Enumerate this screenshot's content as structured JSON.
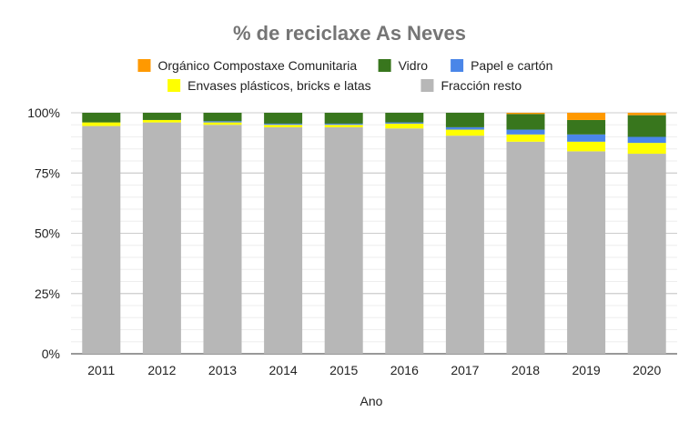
{
  "chart_data": {
    "type": "bar",
    "stacked": true,
    "title": "% de reciclaxe As Neves",
    "xlabel": "Ano",
    "ylabel": "",
    "ylim": [
      0,
      100
    ],
    "yticks": [
      "0%",
      "25%",
      "50%",
      "75%",
      "100%"
    ],
    "legend_position": "top",
    "grid": true,
    "categories": [
      "2011",
      "2012",
      "2013",
      "2014",
      "2015",
      "2016",
      "2017",
      "2018",
      "2019",
      "2020"
    ],
    "series": [
      {
        "name": "Fracción resto",
        "color": "#b7b7b7",
        "values": [
          94.5,
          96.0,
          95.0,
          94.0,
          94.0,
          93.5,
          90.5,
          88.0,
          84.0,
          83.0
        ]
      },
      {
        "name": "Envases plásticos, bricks e latas",
        "color": "#ffff00",
        "values": [
          1.5,
          1.0,
          1.0,
          1.0,
          1.0,
          2.0,
          2.5,
          3.0,
          4.0,
          4.5
        ]
      },
      {
        "name": "Papel e cartón",
        "color": "#4a86e8",
        "values": [
          0.0,
          0.0,
          0.5,
          0.5,
          0.5,
          0.5,
          1.0,
          2.0,
          3.0,
          2.5
        ]
      },
      {
        "name": "Vidro",
        "color": "#38761d",
        "values": [
          4.0,
          3.0,
          3.5,
          4.5,
          4.5,
          4.0,
          6.0,
          6.5,
          6.0,
          9.0
        ]
      },
      {
        "name": "Orgánico Compostaxe Comunitaria",
        "color": "#ff9900",
        "values": [
          0.0,
          0.0,
          0.0,
          0.0,
          0.0,
          0.0,
          0.0,
          0.5,
          3.0,
          1.0
        ]
      }
    ],
    "legend_order": [
      "Orgánico Compostaxe Comunitaria",
      "Vidro",
      "Papel e cartón",
      "Envases plásticos, bricks e latas",
      "Fracción resto"
    ]
  }
}
